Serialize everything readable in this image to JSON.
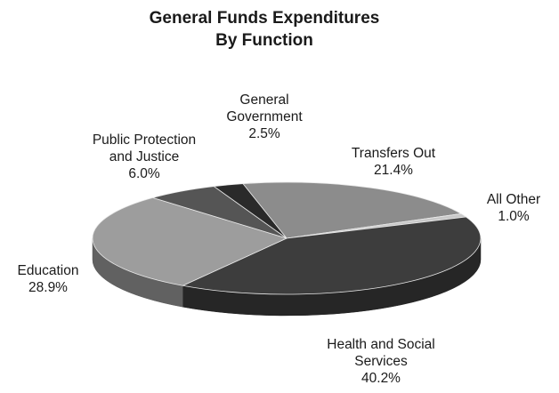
{
  "chart_data": {
    "type": "pie",
    "title": [
      "General Funds Expenditures",
      "By Function"
    ],
    "slices": [
      {
        "name": "Transfers Out",
        "label_lines": [
          "Transfers Out"
        ],
        "value": 21.4,
        "value_label": "21.4%",
        "color": "#8c8c8c"
      },
      {
        "name": "All Other",
        "label_lines": [
          "All Other"
        ],
        "value": 1.0,
        "value_label": "1.0%",
        "color": "#c9c9c9"
      },
      {
        "name": "Health and Social Services",
        "label_lines": [
          "Health and Social",
          "Services"
        ],
        "value": 40.2,
        "value_label": "40.2%",
        "color": "#3d3d3d"
      },
      {
        "name": "Education",
        "label_lines": [
          "Education"
        ],
        "value": 28.9,
        "value_label": "28.9%",
        "color": "#9d9d9d"
      },
      {
        "name": "Public Protection and Justice",
        "label_lines": [
          "Public Protection",
          "and Justice"
        ],
        "value": 6.0,
        "value_label": "6.0%",
        "color": "#555555"
      },
      {
        "name": "General Government",
        "label_lines": [
          "General",
          "Government"
        ],
        "value": 2.5,
        "value_label": "2.5%",
        "color": "#2a2a2a"
      }
    ],
    "legend": "none",
    "style": "3d-tilted"
  }
}
